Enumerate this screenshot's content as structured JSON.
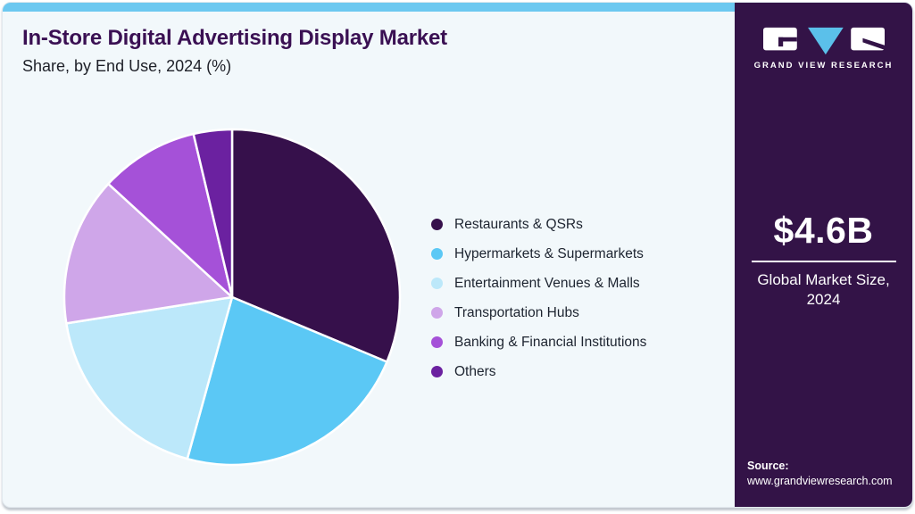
{
  "header": {
    "title": "In-Store Digital Advertising Display Market",
    "subtitle": "Share, by End Use, 2024 (%)"
  },
  "chart_data": {
    "type": "pie",
    "title": "In-Store Digital Advertising Display Market Share, by End Use, 2024 (%)",
    "start_angle_deg": 0,
    "direction": "clockwise",
    "legend_position": "right",
    "slices": [
      {
        "label": "Restaurants & QSRs",
        "value_pct": 31.3,
        "color": "#36104b"
      },
      {
        "label": "Hypermarkets & Supermarkets",
        "value_pct": 23.0,
        "color": "#5bc8f5"
      },
      {
        "label": "Entertainment Venues & Malls",
        "value_pct": 18.2,
        "color": "#bce8fa"
      },
      {
        "label": "Transportation Hubs",
        "value_pct": 14.3,
        "color": "#cfa6e9"
      },
      {
        "label": "Banking & Financial Institutions",
        "value_pct": 9.5,
        "color": "#a551d8"
      },
      {
        "label": "Others",
        "value_pct": 3.7,
        "color": "#6b21a0"
      }
    ]
  },
  "panel": {
    "logo_text": "GRAND VIEW RESEARCH",
    "market_size_value": "$4.6B",
    "market_size_label": "Global Market Size,",
    "market_size_year": "2024",
    "source_label": "Source:",
    "source_url": "www.grandviewresearch.com"
  },
  "colors": {
    "card_bg": "#f2f8fb",
    "top_bar": "#6cc8f0",
    "panel_bg": "#331347",
    "title_text": "#3a1053",
    "logo_blue": "#5bc0ea"
  }
}
